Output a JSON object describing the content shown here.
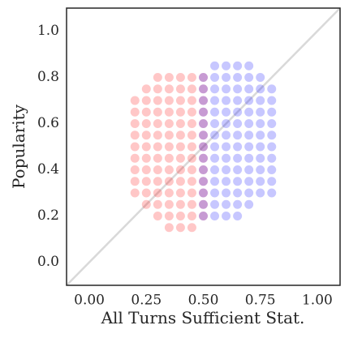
{
  "chart_data": {
    "type": "scatter",
    "xlabel": "All Turns Sufficient Stat.",
    "ylabel": "Popularity",
    "xlim": [
      -0.1,
      1.1
    ],
    "ylim": [
      -0.1,
      1.1
    ],
    "xticks": [
      {
        "value": 0,
        "label": "0.00"
      },
      0.25,
      {
        "value": 0.5,
        "label": "0.50"
      },
      0.75,
      {
        "value": 1,
        "label": "1.00"
      }
    ],
    "yticks": [
      {
        "value": 0,
        "label": "0.0"
      },
      0.2,
      0.4,
      0.6,
      0.8,
      {
        "value": 1,
        "label": "1.0"
      }
    ],
    "diagonal": true,
    "diagonal_color": "#d9d9d9",
    "grid": false,
    "series": [
      {
        "color": "#ff0000",
        "opacity": 0.22,
        "x": [
          0.35,
          0.4,
          0.45,
          0.3,
          0.35,
          0.4,
          0.45,
          0.5,
          0.25,
          0.3,
          0.35,
          0.4,
          0.45,
          0.5,
          0.2,
          0.25,
          0.3,
          0.35,
          0.4,
          0.45,
          0.5,
          0.2,
          0.25,
          0.3,
          0.35,
          0.4,
          0.45,
          0.5,
          0.2,
          0.25,
          0.3,
          0.35,
          0.4,
          0.45,
          0.5,
          0.2,
          0.25,
          0.3,
          0.35,
          0.4,
          0.45,
          0.5,
          0.2,
          0.25,
          0.3,
          0.35,
          0.4,
          0.45,
          0.5,
          0.2,
          0.25,
          0.3,
          0.35,
          0.4,
          0.45,
          0.5,
          0.2,
          0.25,
          0.3,
          0.35,
          0.4,
          0.45,
          0.5,
          0.2,
          0.25,
          0.3,
          0.35,
          0.4,
          0.45,
          0.5,
          0.2,
          0.25,
          0.3,
          0.35,
          0.4,
          0.45,
          0.5,
          0.25,
          0.3,
          0.35,
          0.4,
          0.45,
          0.5,
          0.3,
          0.35,
          0.4,
          0.45,
          0.5
        ],
        "y": [
          0.15,
          0.15,
          0.15,
          0.2,
          0.2,
          0.2,
          0.2,
          0.2,
          0.25,
          0.25,
          0.25,
          0.25,
          0.25,
          0.25,
          0.3,
          0.3,
          0.3,
          0.3,
          0.3,
          0.3,
          0.3,
          0.35,
          0.35,
          0.35,
          0.35,
          0.35,
          0.35,
          0.35,
          0.4,
          0.4,
          0.4,
          0.4,
          0.4,
          0.4,
          0.4,
          0.45,
          0.45,
          0.45,
          0.45,
          0.45,
          0.45,
          0.45,
          0.5,
          0.5,
          0.5,
          0.5,
          0.5,
          0.5,
          0.5,
          0.55,
          0.55,
          0.55,
          0.55,
          0.55,
          0.55,
          0.55,
          0.6,
          0.6,
          0.6,
          0.6,
          0.6,
          0.6,
          0.6,
          0.65,
          0.65,
          0.65,
          0.65,
          0.65,
          0.65,
          0.65,
          0.7,
          0.7,
          0.7,
          0.7,
          0.7,
          0.7,
          0.7,
          0.75,
          0.75,
          0.75,
          0.75,
          0.75,
          0.75,
          0.8,
          0.8,
          0.8,
          0.8,
          0.8
        ]
      },
      {
        "color": "#0000ff",
        "opacity": 0.22,
        "x": [
          0.5,
          0.55,
          0.6,
          0.65,
          0.5,
          0.55,
          0.6,
          0.65,
          0.7,
          0.5,
          0.55,
          0.6,
          0.65,
          0.7,
          0.75,
          0.8,
          0.5,
          0.55,
          0.6,
          0.65,
          0.7,
          0.75,
          0.8,
          0.5,
          0.55,
          0.6,
          0.65,
          0.7,
          0.75,
          0.8,
          0.5,
          0.55,
          0.6,
          0.65,
          0.7,
          0.75,
          0.8,
          0.5,
          0.55,
          0.6,
          0.65,
          0.7,
          0.75,
          0.8,
          0.5,
          0.55,
          0.6,
          0.65,
          0.7,
          0.75,
          0.8,
          0.5,
          0.55,
          0.6,
          0.65,
          0.7,
          0.75,
          0.8,
          0.5,
          0.55,
          0.6,
          0.65,
          0.7,
          0.75,
          0.8,
          0.5,
          0.55,
          0.6,
          0.65,
          0.7,
          0.75,
          0.8,
          0.5,
          0.55,
          0.6,
          0.65,
          0.7,
          0.75,
          0.8,
          0.5,
          0.55,
          0.6,
          0.65,
          0.7,
          0.75,
          0.55,
          0.6,
          0.65,
          0.7
        ],
        "y": [
          0.2,
          0.2,
          0.2,
          0.2,
          0.25,
          0.25,
          0.25,
          0.25,
          0.25,
          0.3,
          0.3,
          0.3,
          0.3,
          0.3,
          0.3,
          0.3,
          0.35,
          0.35,
          0.35,
          0.35,
          0.35,
          0.35,
          0.35,
          0.4,
          0.4,
          0.4,
          0.4,
          0.4,
          0.4,
          0.4,
          0.45,
          0.45,
          0.45,
          0.45,
          0.45,
          0.45,
          0.45,
          0.5,
          0.5,
          0.5,
          0.5,
          0.5,
          0.5,
          0.5,
          0.55,
          0.55,
          0.55,
          0.55,
          0.55,
          0.55,
          0.55,
          0.6,
          0.6,
          0.6,
          0.6,
          0.6,
          0.6,
          0.6,
          0.65,
          0.65,
          0.65,
          0.65,
          0.65,
          0.65,
          0.65,
          0.7,
          0.7,
          0.7,
          0.7,
          0.7,
          0.7,
          0.7,
          0.75,
          0.75,
          0.75,
          0.75,
          0.75,
          0.75,
          0.75,
          0.8,
          0.8,
          0.8,
          0.8,
          0.8,
          0.8,
          0.85,
          0.85,
          0.85,
          0.85
        ]
      }
    ]
  }
}
